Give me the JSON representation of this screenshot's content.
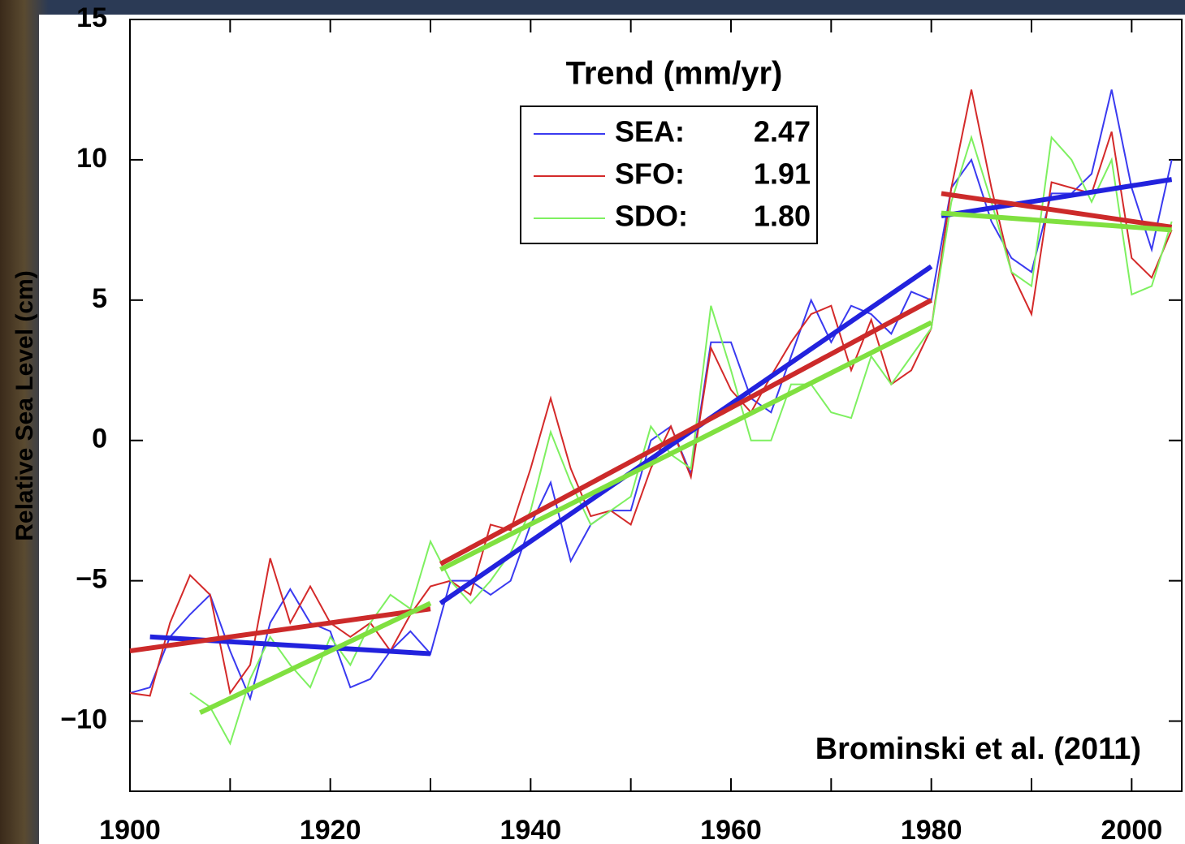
{
  "chart_data": {
    "type": "line",
    "ylabel": "Relative Sea Level (cm)",
    "legend_title": "Trend (mm/yr)",
    "annotation": "Brominski et al. (2011)",
    "xlim": [
      1900,
      2005
    ],
    "ylim": [
      -12.5,
      15
    ],
    "xticks": [
      1900,
      1920,
      1940,
      1960,
      1980,
      2000
    ],
    "xminor_ticks": [
      1910,
      1930,
      1950,
      1970,
      1990
    ],
    "yticks": [
      {
        "value": -10,
        "label": "−10"
      },
      {
        "value": -5,
        "label": "−5"
      },
      0,
      5,
      10,
      15
    ],
    "x": [
      1900,
      1902,
      1904,
      1906,
      1908,
      1910,
      1912,
      1914,
      1916,
      1918,
      1920,
      1922,
      1924,
      1926,
      1928,
      1930,
      1932,
      1934,
      1936,
      1938,
      1940,
      1942,
      1944,
      1946,
      1948,
      1950,
      1952,
      1954,
      1956,
      1958,
      1960,
      1962,
      1964,
      1966,
      1968,
      1970,
      1972,
      1974,
      1976,
      1978,
      1980,
      1982,
      1984,
      1986,
      1988,
      1990,
      1992,
      1994,
      1996,
      1998,
      2000,
      2002,
      2004
    ],
    "series": [
      {
        "name": "SEA:",
        "trend": 2.47,
        "color": "#3a3af0",
        "values": [
          -9,
          -8.8,
          -7,
          -6.2,
          -5.5,
          -7.5,
          -9.2,
          -6.5,
          -5.3,
          -6.5,
          -6.8,
          -8.8,
          -8.5,
          -7.5,
          -6.8,
          -7.6,
          -5,
          -5,
          -5.5,
          -5,
          -3,
          -1.5,
          -4.3,
          -3,
          -2.5,
          -2.5,
          0,
          0.5,
          -1.2,
          3.5,
          3.5,
          1.5,
          1,
          3,
          5,
          3.5,
          4.8,
          4.5,
          3.8,
          5.3,
          5,
          9,
          10,
          7.8,
          6.5,
          6,
          8.8,
          8.8,
          9.5,
          12.5,
          9,
          6.8,
          10
        ],
        "trend_lines": {
          "color": "#2222dd",
          "x": [
            1902,
            1930,
            1931,
            1980,
            1981,
            2004
          ],
          "values": [
            -7.0,
            -7.6,
            -5.8,
            6.2,
            8.0,
            9.3
          ]
        }
      },
      {
        "name": "SFO:",
        "trend": 1.91,
        "color": "#d42a2a",
        "values": [
          -9,
          -9.1,
          -6.5,
          -4.8,
          -5.5,
          -9,
          -8,
          -4.2,
          -6.5,
          -5.2,
          -6.5,
          -7,
          -6.5,
          -7.5,
          -6.2,
          -5.2,
          -5,
          -5.5,
          -3,
          -3.2,
          -1,
          1.5,
          -1,
          -2.7,
          -2.5,
          -3,
          -1,
          0.5,
          -1.3,
          3.3,
          1.8,
          1,
          2.3,
          3.5,
          4.5,
          4.8,
          2.5,
          4.3,
          2,
          2.5,
          4,
          9,
          12.5,
          9,
          6,
          4.5,
          9.2,
          9,
          8.8,
          11,
          6.5,
          5.8,
          7.5
        ],
        "trend_lines": {
          "color": "#cc2a2a",
          "x": [
            1900,
            1930,
            1931,
            1980,
            1981,
            2004
          ],
          "values": [
            -7.5,
            -6.0,
            -4.4,
            5.0,
            8.8,
            7.6
          ]
        }
      },
      {
        "name": "SDO:",
        "trend": 1.8,
        "value_label": "1.80",
        "color": "#7ef060",
        "values": [
          null,
          null,
          null,
          -9,
          -9.5,
          -10.8,
          -8.5,
          -7,
          -8,
          -8.8,
          -7,
          -8,
          -6.5,
          -5.5,
          -6,
          -3.6,
          -5,
          -5.8,
          -5,
          -4,
          -2.5,
          0.3,
          -1.5,
          -3,
          -2.5,
          -2,
          0.5,
          -0.5,
          -1,
          4.8,
          2.5,
          0,
          0,
          2,
          2,
          1,
          0.8,
          3,
          2,
          3,
          4,
          8.5,
          10.8,
          8.5,
          6,
          5.5,
          10.8,
          10,
          8.5,
          10,
          5.2,
          5.5,
          7.8
        ],
        "trend_lines": {
          "color": "#80e040",
          "x": [
            1907,
            1930,
            1931,
            1980,
            1981,
            2004
          ],
          "values": [
            -9.7,
            -5.8,
            -4.6,
            4.2,
            8.1,
            7.5
          ]
        }
      }
    ]
  }
}
